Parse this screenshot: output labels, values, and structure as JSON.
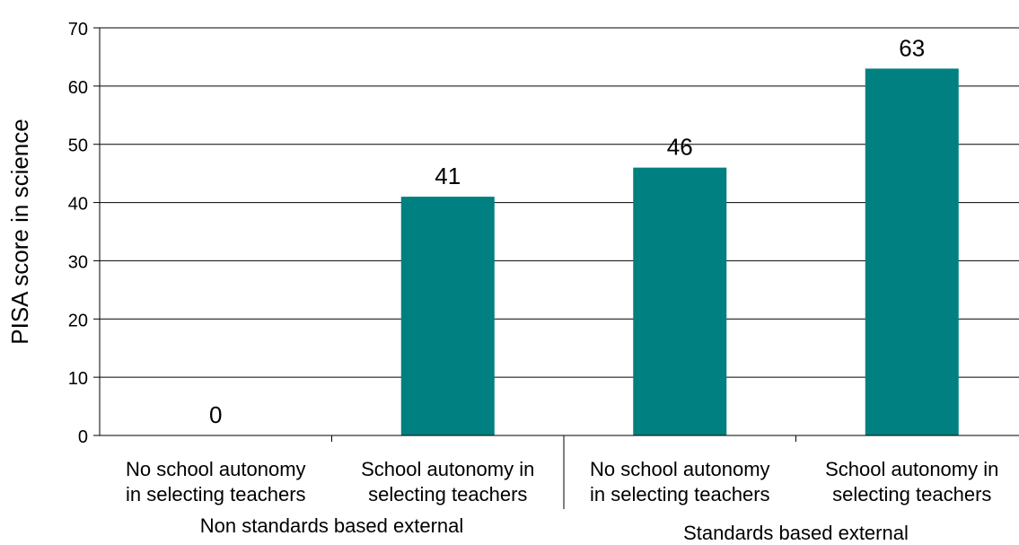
{
  "colors": {
    "bar": "#008080",
    "grid": "#000000",
    "axis": "#000000",
    "text": "#000000"
  },
  "chart_data": {
    "type": "bar",
    "title": "",
    "xlabel": "",
    "ylabel": "PISA score in science",
    "ylim": [
      0,
      70
    ],
    "yticks": [
      0,
      10,
      20,
      30,
      40,
      50,
      60,
      70
    ],
    "grid": true,
    "categories": [
      [
        "No school autonomy",
        "in selecting teachers"
      ],
      [
        "School autonomy in",
        "selecting teachers"
      ],
      [
        "No school autonomy",
        "in selecting teachers"
      ],
      [
        "School autonomy in",
        "selecting teachers"
      ]
    ],
    "values": [
      0,
      41,
      46,
      63
    ],
    "data_labels": [
      "0",
      "41",
      "46",
      "63"
    ],
    "groups": [
      {
        "label": "Non standards based external",
        "categories": [
          0,
          1
        ]
      },
      {
        "label": "Standards based external",
        "categories": [
          2,
          3
        ]
      }
    ]
  }
}
